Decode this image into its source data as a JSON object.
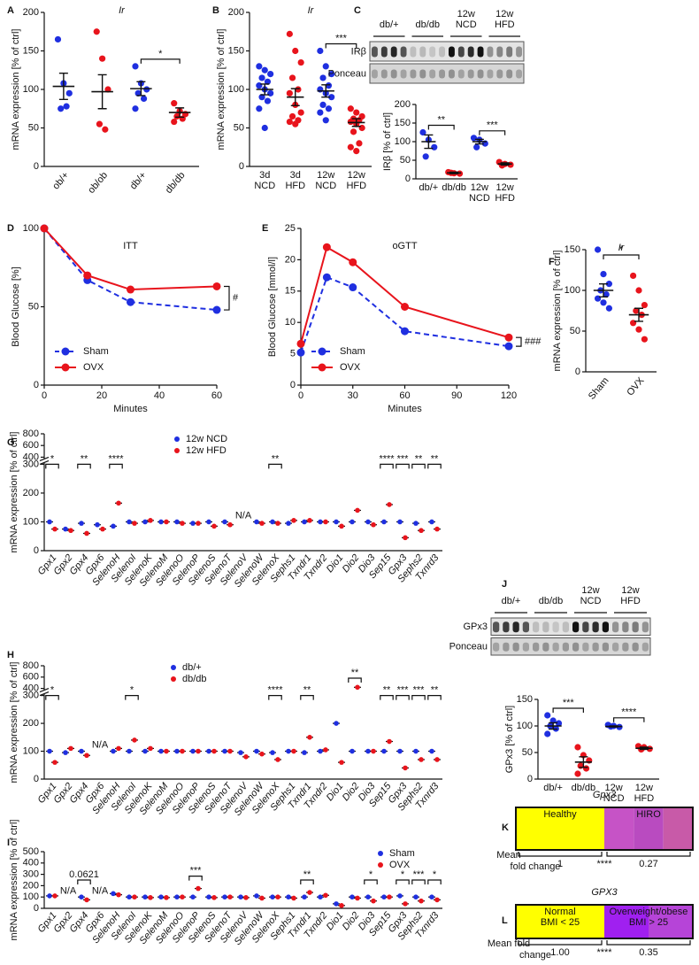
{
  "chart_data": [
    {
      "type": "dot",
      "panel": "A",
      "title": "Ir",
      "ylabel": "mRNA expression [% of ctrl]",
      "ylim": [
        0,
        200
      ],
      "yticks": [
        0,
        50,
        100,
        150,
        200
      ],
      "categories": [
        "ob/+",
        "ob/ob",
        "db/+",
        "db/db"
      ],
      "colors": [
        "#1f2fe0",
        "#e8141c",
        "#1f2fe0",
        "#e8141c"
      ],
      "points": [
        [
          165,
          108,
          95,
          75,
          78
        ],
        [
          175,
          140,
          100,
          55,
          48
        ],
        [
          130,
          108,
          100,
          95,
          88,
          75
        ],
        [
          82,
          72,
          68,
          65,
          62,
          58
        ]
      ],
      "means": [
        104,
        97,
        101,
        70
      ],
      "sems": [
        17,
        22,
        9,
        6
      ],
      "significance": [
        null,
        null,
        null,
        "*"
      ]
    },
    {
      "type": "dot",
      "panel": "B",
      "title": "Ir",
      "ylabel": "mRNA expression [% of ctrl]",
      "ylim": [
        0,
        200
      ],
      "yticks": [
        0,
        50,
        100,
        150,
        200
      ],
      "categories": [
        [
          "3d",
          "NCD"
        ],
        [
          "3d",
          "HFD"
        ],
        [
          "12w",
          "NCD"
        ],
        [
          "12w",
          "HFD"
        ]
      ],
      "colors": [
        "#1f2fe0",
        "#e8141c",
        "#1f2fe0",
        "#e8141c"
      ],
      "points": [
        [
          130,
          125,
          120,
          115,
          110,
          105,
          100,
          95,
          90,
          85,
          75,
          50
        ],
        [
          172,
          150,
          135,
          115,
          100,
          95,
          80,
          70,
          65,
          60,
          58,
          55
        ],
        [
          150,
          130,
          120,
          115,
          105,
          100,
          95,
          90,
          80,
          75,
          70,
          60
        ],
        [
          75,
          70,
          65,
          62,
          60,
          58,
          55,
          50,
          45,
          30,
          25,
          20
        ]
      ],
      "means": [
        100,
        90,
        98,
        57
      ],
      "sems": [
        7,
        11,
        8,
        5
      ],
      "significance": [
        null,
        null,
        null,
        "***"
      ]
    },
    {
      "type": "dot",
      "panel": "C",
      "ylabel": "IRβ [% of ctrl]",
      "ylim": [
        0,
        200
      ],
      "yticks": [
        0,
        50,
        100,
        150,
        200
      ],
      "blot": {
        "groups": [
          "db/+",
          "db/db",
          [
            "12w",
            "NCD"
          ],
          [
            "12w",
            "HFD"
          ]
        ],
        "rows": [
          "IRβ",
          "Ponceau"
        ]
      },
      "categories": [
        "db/+",
        "db/db",
        [
          "12w",
          "NCD"
        ],
        [
          "12w",
          "HFD"
        ]
      ],
      "colors": [
        "#1f2fe0",
        "#e8141c",
        "#1f2fe0",
        "#e8141c"
      ],
      "points": [
        [
          125,
          105,
          85,
          60
        ],
        [
          18,
          15,
          14,
          16
        ],
        [
          110,
          105,
          95,
          85
        ],
        [
          45,
          40,
          38,
          36
        ]
      ],
      "means": [
        100,
        16,
        100,
        40
      ],
      "sems": [
        18,
        2,
        6,
        3
      ],
      "significance": [
        null,
        "**",
        null,
        "***"
      ]
    },
    {
      "type": "line",
      "panel": "D",
      "title": "ITT",
      "xlabel": "Minutes",
      "ylabel": "Blood Glucose [%]",
      "x": [
        0,
        15,
        30,
        60
      ],
      "xlim": [
        0,
        60
      ],
      "xticks": [
        0,
        20,
        40,
        60
      ],
      "ylim": [
        0,
        100
      ],
      "yticks": [
        0,
        50,
        100
      ],
      "significance": "#",
      "series": [
        {
          "name": "Sham",
          "color": "#1f2fe0",
          "dashed": true,
          "values": [
            100,
            67,
            53,
            48
          ]
        },
        {
          "name": "OVX",
          "color": "#e8141c",
          "dashed": false,
          "values": [
            100,
            70,
            61,
            63
          ]
        }
      ]
    },
    {
      "type": "line",
      "panel": "E",
      "title": "oGTT",
      "xlabel": "Minutes",
      "ylabel": "Blood Glucose [mmol/l]",
      "x": [
        0,
        15,
        30,
        60,
        120
      ],
      "xlim": [
        0,
        120
      ],
      "xticks": [
        0,
        30,
        60,
        90,
        120
      ],
      "ylim": [
        0,
        25
      ],
      "yticks": [
        0,
        5,
        10,
        15,
        20,
        25
      ],
      "significance": "###",
      "series": [
        {
          "name": "Sham",
          "color": "#1f2fe0",
          "dashed": true,
          "values": [
            5.2,
            17.2,
            15.6,
            8.6,
            6.2
          ]
        },
        {
          "name": "OVX",
          "color": "#e8141c",
          "dashed": false,
          "values": [
            6.6,
            22,
            19.6,
            12.5,
            7.6
          ]
        }
      ]
    },
    {
      "type": "dot",
      "panel": "F",
      "title": "Ir",
      "ylabel": "mRNA expression [% of ctrl]",
      "ylim": [
        0,
        150
      ],
      "yticks": [
        0,
        50,
        100,
        150
      ],
      "categories": [
        "Sham",
        "OVX"
      ],
      "colors": [
        "#1f2fe0",
        "#e8141c"
      ],
      "points": [
        [
          150,
          120,
          108,
          100,
          95,
          90,
          85,
          78
        ],
        [
          118,
          100,
          82,
          75,
          70,
          60,
          52,
          40
        ]
      ],
      "means": [
        100,
        70
      ],
      "sems": [
        8,
        8
      ],
      "significance": [
        null,
        "*"
      ]
    },
    {
      "type": "genes",
      "panel": "G",
      "ylabel": "mRNA expression [% of ctrl]",
      "ylim": [
        0,
        800
      ],
      "ybreak": [
        300,
        400
      ],
      "yticks": [
        0,
        100,
        200,
        300,
        400,
        600,
        800
      ],
      "categories": [
        "Gpx1",
        "Gpx2",
        "Gpx4",
        "Gpx6",
        "SelenoH",
        "SelenoI",
        "SelenoK",
        "SelenoM",
        "SelenoO",
        "SelenoP",
        "SelenoS",
        "SelenoT",
        "SelenoV",
        "SelenoW",
        "SelenoX",
        "Sephs1",
        "Txndr1",
        "Txndr2",
        "Dio1",
        "Dio2",
        "Dio3",
        "Sep15",
        "Gpx3",
        "Sephs2",
        "Txnrd3"
      ],
      "series": [
        {
          "name": "12w NCD",
          "color": "#1f2fe0",
          "values": [
            100,
            75,
            95,
            90,
            85,
            100,
            100,
            100,
            100,
            95,
            100,
            100,
            null,
            100,
            100,
            95,
            100,
            100,
            100,
            100,
            100,
            100,
            100,
            95,
            100
          ]
        },
        {
          "name": "12w HFD",
          "color": "#e8141c",
          "values": [
            75,
            70,
            60,
            75,
            165,
            95,
            105,
            100,
            95,
            95,
            85,
            90,
            null,
            95,
            95,
            105,
            105,
            100,
            85,
            140,
            90,
            160,
            45,
            70,
            75
          ]
        }
      ],
      "significance": [
        "*",
        null,
        "**",
        null,
        "****",
        null,
        null,
        null,
        null,
        null,
        null,
        null,
        null,
        null,
        "**",
        null,
        null,
        null,
        null,
        null,
        null,
        "****",
        "***",
        "**",
        "**"
      ],
      "notes": [
        null,
        null,
        null,
        null,
        null,
        null,
        null,
        null,
        null,
        null,
        null,
        null,
        "N/A",
        null,
        null,
        null,
        null,
        null,
        null,
        null,
        null,
        null,
        null,
        null,
        null
      ]
    },
    {
      "type": "genes",
      "panel": "H",
      "ylabel": "mRNA expression [% of ctrl]",
      "ylim": [
        0,
        800
      ],
      "ybreak": [
        300,
        400
      ],
      "yticks": [
        0,
        100,
        200,
        300,
        400,
        600,
        800
      ],
      "categories": [
        "Gpx1",
        "Gpx2",
        "Gpx4",
        "Gpx6",
        "SelenoH",
        "SelenoI",
        "SelenoK",
        "SelenoM",
        "SelenoO",
        "SelenoP",
        "SelenoS",
        "SelenoT",
        "SelenoV",
        "SelenoW",
        "SelenoX",
        "Sephs1",
        "Txndr1",
        "Txndr2",
        "Dio1",
        "Dio2",
        "Dio3",
        "Sep15",
        "Gpx3",
        "Sephs2",
        "Txnrd3"
      ],
      "series": [
        {
          "name": "db/+",
          "color": "#1f2fe0",
          "values": [
            100,
            95,
            100,
            null,
            100,
            100,
            100,
            100,
            100,
            100,
            100,
            100,
            95,
            100,
            95,
            100,
            95,
            100,
            200,
            100,
            100,
            100,
            100,
            100,
            100
          ]
        },
        {
          "name": "db/db",
          "color": "#e8141c",
          "values": [
            60,
            110,
            85,
            null,
            110,
            140,
            110,
            100,
            100,
            100,
            100,
            100,
            80,
            90,
            70,
            100,
            150,
            105,
            60,
            420,
            100,
            135,
            40,
            70,
            70
          ]
        }
      ],
      "significance": [
        "*",
        null,
        null,
        null,
        null,
        "*",
        null,
        null,
        null,
        null,
        null,
        null,
        null,
        null,
        "****",
        null,
        "**",
        null,
        null,
        "**",
        null,
        "**",
        "***",
        "***",
        "**"
      ],
      "notes": [
        null,
        null,
        null,
        "N/A",
        null,
        null,
        null,
        null,
        null,
        null,
        null,
        null,
        null,
        null,
        null,
        null,
        null,
        null,
        null,
        null,
        null,
        null,
        null,
        null,
        null
      ]
    },
    {
      "type": "genes",
      "panel": "I",
      "ylabel": "mRNA expression [% of ctrl]",
      "ylim": [
        0,
        500
      ],
      "yticks": [
        0,
        100,
        200,
        300,
        400,
        500
      ],
      "categories": [
        "Gpx1",
        "Gpx2",
        "Gpx4",
        "Gpx6",
        "SelenoH",
        "SelenoI",
        "SelenoK",
        "SelenoM",
        "SelenoO",
        "SelenoP",
        "SelenoS",
        "SelenoT",
        "SelenoV",
        "SelenoW",
        "SelenoX",
        "Sephs1",
        "Txndr1",
        "Txndr2",
        "Dio1",
        "Dio2",
        "Dio3",
        "Sep15",
        "Gpx3",
        "Sephs2",
        "Txnrd3"
      ],
      "series": [
        {
          "name": "Sham",
          "color": "#1f2fe0",
          "values": [
            110,
            null,
            100,
            null,
            130,
            100,
            100,
            100,
            100,
            100,
            100,
            100,
            100,
            110,
            100,
            100,
            100,
            100,
            40,
            100,
            100,
            100,
            110,
            100,
            100
          ]
        },
        {
          "name": "OVX",
          "color": "#e8141c",
          "values": [
            110,
            null,
            75,
            null,
            120,
            100,
            95,
            95,
            100,
            175,
            95,
            100,
            95,
            90,
            100,
            90,
            140,
            115,
            25,
            90,
            65,
            100,
            40,
            65,
            75
          ]
        }
      ],
      "significance": [
        null,
        null,
        "0.0621",
        null,
        null,
        null,
        null,
        null,
        null,
        "***",
        null,
        null,
        null,
        null,
        null,
        null,
        "**",
        null,
        null,
        null,
        "*",
        null,
        "*",
        "***",
        "*"
      ],
      "notes": [
        null,
        "N/A",
        null,
        "N/A",
        null,
        null,
        null,
        null,
        null,
        null,
        null,
        null,
        null,
        null,
        null,
        null,
        null,
        null,
        null,
        null,
        null,
        null,
        null,
        null,
        null
      ]
    },
    {
      "type": "dot",
      "panel": "J",
      "ylabel": "GPx3 [% of ctrl]",
      "ylim": [
        0,
        150
      ],
      "yticks": [
        0,
        50,
        100,
        150
      ],
      "blot": {
        "groups": [
          "db/+",
          "db/db",
          [
            "12w",
            "NCD"
          ],
          [
            "12w",
            "HFD"
          ]
        ],
        "rows": [
          "GPx3",
          "Ponceau"
        ]
      },
      "categories": [
        "db/+",
        "db/db",
        [
          "12w",
          "NCD"
        ],
        [
          "12w",
          "HFD"
        ]
      ],
      "colors": [
        "#1f2fe0",
        "#e8141c",
        "#1f2fe0",
        "#e8141c"
      ],
      "points": [
        [
          120,
          110,
          105,
          100,
          95,
          85
        ],
        [
          60,
          45,
          35,
          25,
          20,
          10
        ],
        [
          102,
          100,
          98,
          99
        ],
        [
          62,
          60,
          57,
          56
        ]
      ],
      "means": [
        100,
        32,
        99,
        58
      ],
      "sems": [
        6,
        10,
        1,
        2
      ],
      "significance": [
        null,
        "***",
        null,
        "****"
      ]
    },
    {
      "type": "heatmap",
      "panel": "K",
      "title": "Gpx3",
      "ylabel": [
        "Mean",
        "fold change"
      ],
      "significance": "****",
      "groups": [
        {
          "label": [
            "Healthy"
          ],
          "cells": [
            "#ffff00"
          ]
        },
        {
          "label": [
            "HIRO"
          ],
          "cells": [
            "#c653c6",
            "#b94bc0",
            "#c85aa8"
          ]
        }
      ],
      "values": [
        1,
        0.27
      ]
    },
    {
      "type": "heatmap",
      "panel": "L",
      "title": "GPX3",
      "ylabel": [
        "Mean fold",
        "change"
      ],
      "significance": "****",
      "groups": [
        {
          "label": [
            "Normal",
            "BMI < 25"
          ],
          "cells": [
            "#ffff00"
          ]
        },
        {
          "label": [
            "Overweight/obese",
            "BMI > 25"
          ],
          "cells": [
            "#a020f0",
            "#b644d8"
          ]
        }
      ],
      "values": [
        1,
        0.35
      ],
      "value_labels": [
        "1.00",
        "0.35"
      ]
    }
  ]
}
